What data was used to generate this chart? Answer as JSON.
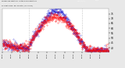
{
  "title": "Milwaukee Weather Outdoor Temperature vs Heat Index per Minute (24 Hours)",
  "bg_color": "#e8e8e8",
  "plot_bg": "#ffffff",
  "temp_color": "#ff0000",
  "heat_color": "#0000cc",
  "ylim": [
    36,
    80
  ],
  "yticks": [
    40,
    45,
    50,
    55,
    60,
    65,
    70,
    75
  ],
  "vline_positions": [
    360,
    1080
  ],
  "num_points": 1440,
  "seed": 7
}
